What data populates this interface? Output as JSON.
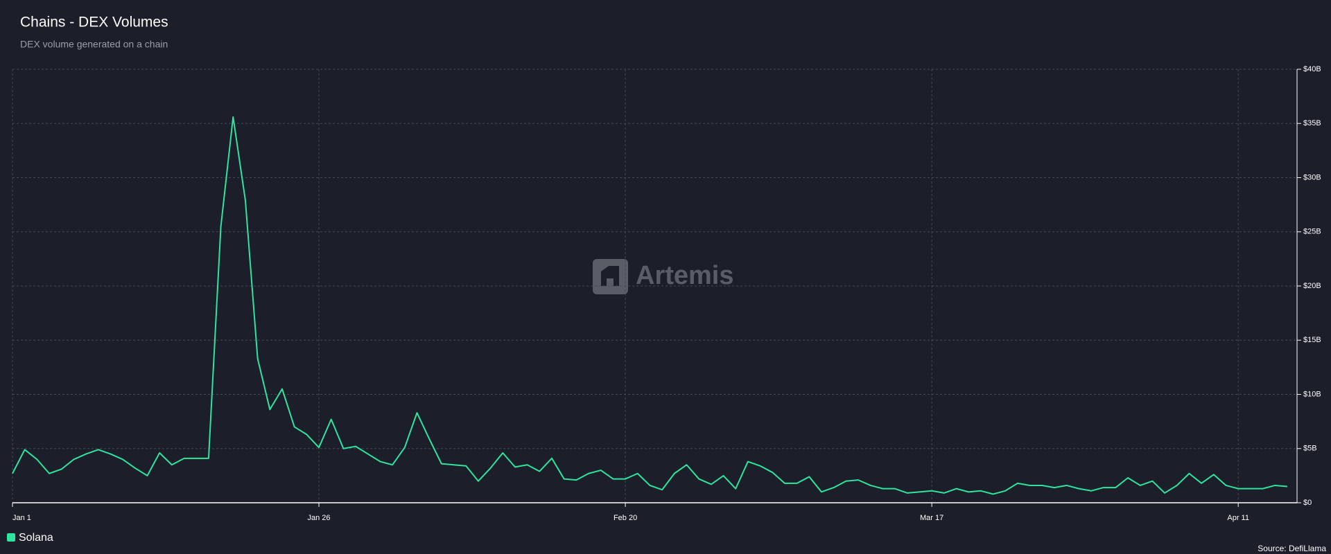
{
  "chart_data": {
    "type": "line",
    "title": "Chains - DEX Volumes",
    "subtitle": "DEX volume generated on a chain",
    "watermark": "Artemis",
    "source": "Source: DefiLlama",
    "categories": [
      "Jan 1",
      null,
      null,
      null,
      null,
      null,
      null,
      null,
      null,
      null,
      null,
      null,
      null,
      null,
      null,
      null,
      null,
      null,
      null,
      null,
      null,
      null,
      null,
      null,
      null,
      "Jan 26",
      null,
      null,
      null,
      null,
      null,
      null,
      null,
      null,
      null,
      null,
      null,
      null,
      null,
      null,
      null,
      null,
      null,
      null,
      null,
      null,
      null,
      null,
      null,
      null,
      "Feb 20",
      null,
      null,
      null,
      null,
      null,
      null,
      null,
      null,
      null,
      null,
      null,
      null,
      null,
      null,
      null,
      null,
      null,
      null,
      null,
      null,
      null,
      null,
      null,
      null,
      "Mar 17",
      null,
      null,
      null,
      null,
      null,
      null,
      null,
      null,
      null,
      null,
      null,
      null,
      null,
      null,
      null,
      null,
      null,
      null,
      null,
      null,
      null,
      null,
      null,
      null,
      "Apr 11",
      null,
      null,
      null,
      null
    ],
    "series": [
      {
        "name": "Solana",
        "color": "#2ee59d",
        "values": [
          2.7,
          4.9,
          4.0,
          2.7,
          3.1,
          4.0,
          4.5,
          4.9,
          4.5,
          4.0,
          3.2,
          2.5,
          4.6,
          3.5,
          4.1,
          4.1,
          4.1,
          25.5,
          35.6,
          27.9,
          13.3,
          8.6,
          10.5,
          7.0,
          6.3,
          5.1,
          7.7,
          5.0,
          5.2,
          4.5,
          3.8,
          3.5,
          5.1,
          8.3,
          5.9,
          3.6,
          3.5,
          3.4,
          2.0,
          3.2,
          4.6,
          3.3,
          3.5,
          2.9,
          4.1,
          2.2,
          2.1,
          2.7,
          3.0,
          2.2,
          2.2,
          2.7,
          1.6,
          1.2,
          2.7,
          3.5,
          2.2,
          1.7,
          2.5,
          1.3,
          3.8,
          3.4,
          2.8,
          1.8,
          1.8,
          2.4,
          1.0,
          1.4,
          2.0,
          2.1,
          1.6,
          1.3,
          1.3,
          0.9,
          1.0,
          1.1,
          0.9,
          1.3,
          1.0,
          1.1,
          0.8,
          1.1,
          1.8,
          1.6,
          1.6,
          1.4,
          1.6,
          1.3,
          1.1,
          1.4,
          1.4,
          2.3,
          1.6,
          2.0,
          0.9,
          1.6,
          2.7,
          1.8,
          2.6,
          1.6,
          1.3,
          1.3,
          1.3,
          1.6,
          1.5
        ]
      }
    ],
    "ylim": [
      0,
      40
    ],
    "yticks": [
      {
        "value": 0,
        "label": "$0"
      },
      {
        "value": 5,
        "label": "$5B"
      },
      {
        "value": 10,
        "label": "$10B"
      },
      {
        "value": 15,
        "label": "$15B"
      },
      {
        "value": 20,
        "label": "$20B"
      },
      {
        "value": 25,
        "label": "$25B"
      },
      {
        "value": 30,
        "label": "$30B"
      },
      {
        "value": 35,
        "label": "$35B"
      },
      {
        "value": 40,
        "label": "$40B"
      }
    ],
    "grid": true
  }
}
